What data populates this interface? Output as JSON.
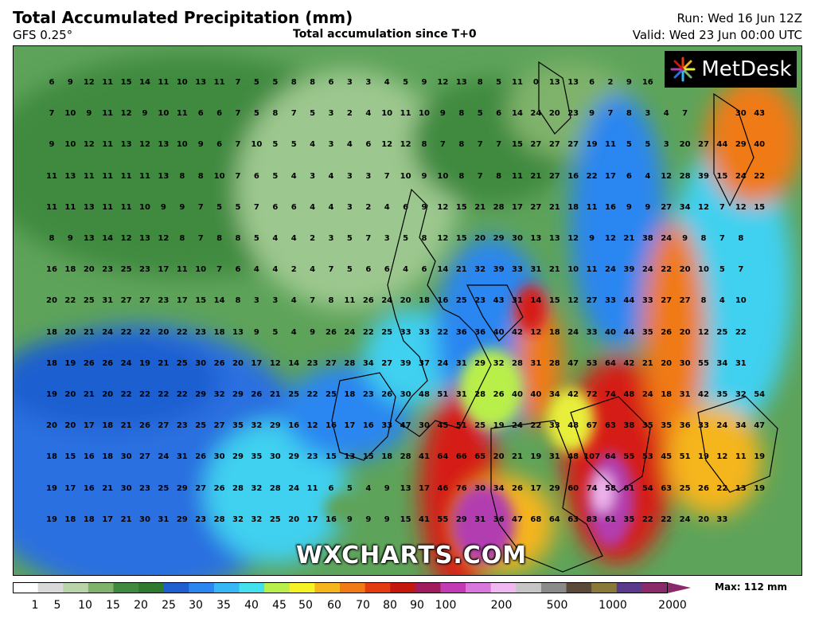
{
  "header": {
    "title": "Total Accumulated Precipitation (mm)",
    "model": "GFS 0.25°",
    "subtitle": "Total accumulation since T+0",
    "run": "Run: Wed 16 Jun 12Z",
    "valid": "Valid: Wed 23 Jun 00:00 UTC"
  },
  "logo": {
    "text": "MetDesk",
    "icon": "metdesk-burst-icon"
  },
  "watermark": "WXCHARTS.COM",
  "legend": {
    "labels": [
      "1",
      "5",
      "10",
      "15",
      "20",
      "25",
      "30",
      "35",
      "40",
      "45",
      "50",
      "60",
      "70",
      "80",
      "90",
      "100",
      "200",
      "500",
      "1000",
      "2000"
    ],
    "max_label": "Max: 112 mm",
    "colors": [
      "#ffffff",
      "#d9d9d9",
      "#b8d4a8",
      "#7fb26a",
      "#3f8a3f",
      "#2f7a2f",
      "#1f5fd0",
      "#2b86f0",
      "#38b7f5",
      "#43e0ee",
      "#b9ef4a",
      "#f5f226",
      "#f5b51d",
      "#f07a16",
      "#e53b12",
      "#c6170f",
      "#a01c5c",
      "#c23bb4",
      "#d878dc",
      "#f0b8f0",
      "#c6c6c6",
      "#8a8a8a",
      "#5a4a3a",
      "#8a7a3a",
      "#5a3a8a",
      "#8a2a6a"
    ]
  },
  "map": {
    "colors": {
      "dark_green": "#3f8a3f",
      "green": "#5ea35a",
      "light_green": "#9cc78e",
      "blue": "#2b6fe0",
      "cyan": "#3fd0f0",
      "yellow": "#e8ef3a",
      "orange": "#f07a16",
      "red": "#d61e12",
      "magenta": "#b23cb0"
    },
    "grid_values": [
      [
        "6",
        "9",
        "12",
        "11",
        "15",
        "14",
        "11",
        "10",
        "13",
        "11",
        "7",
        "5",
        "5",
        "8",
        "8",
        "6",
        "3",
        "3",
        "4",
        "5",
        "9",
        "12",
        "13",
        "8",
        "5",
        "11",
        "0",
        "13",
        "13",
        "6",
        "2",
        "9",
        "16"
      ],
      [
        "7",
        "10",
        "9",
        "11",
        "12",
        "9",
        "10",
        "11",
        "6",
        "6",
        "7",
        "5",
        "8",
        "7",
        "5",
        "3",
        "2",
        "4",
        "10",
        "11",
        "10",
        "9",
        "8",
        "5",
        "6",
        "14",
        "24",
        "20",
        "23",
        "9",
        "7",
        "8",
        "3",
        "4",
        "7",
        "",
        "",
        "30",
        "43"
      ],
      [
        "9",
        "10",
        "12",
        "11",
        "13",
        "12",
        "13",
        "10",
        "9",
        "6",
        "7",
        "10",
        "5",
        "5",
        "4",
        "3",
        "4",
        "6",
        "12",
        "12",
        "8",
        "7",
        "8",
        "7",
        "7",
        "15",
        "27",
        "27",
        "27",
        "19",
        "11",
        "5",
        "5",
        "3",
        "20",
        "27",
        "44",
        "29",
        "40"
      ],
      [
        "11",
        "13",
        "11",
        "11",
        "11",
        "11",
        "13",
        "8",
        "8",
        "10",
        "7",
        "6",
        "5",
        "4",
        "3",
        "4",
        "3",
        "3",
        "7",
        "10",
        "9",
        "10",
        "8",
        "7",
        "8",
        "11",
        "21",
        "27",
        "16",
        "22",
        "17",
        "6",
        "4",
        "12",
        "28",
        "39",
        "15",
        "24",
        "22"
      ],
      [
        "11",
        "11",
        "13",
        "11",
        "11",
        "10",
        "9",
        "9",
        "7",
        "5",
        "5",
        "7",
        "6",
        "6",
        "4",
        "4",
        "3",
        "2",
        "4",
        "6",
        "9",
        "12",
        "15",
        "21",
        "28",
        "17",
        "27",
        "21",
        "18",
        "11",
        "16",
        "9",
        "9",
        "27",
        "34",
        "12",
        "7",
        "12",
        "15"
      ],
      [
        "8",
        "9",
        "13",
        "14",
        "12",
        "13",
        "12",
        "8",
        "7",
        "8",
        "8",
        "5",
        "4",
        "4",
        "2",
        "3",
        "5",
        "7",
        "3",
        "5",
        "8",
        "12",
        "15",
        "20",
        "29",
        "30",
        "13",
        "13",
        "12",
        "9",
        "12",
        "21",
        "38",
        "24",
        "9",
        "8",
        "7",
        "8"
      ],
      [
        "16",
        "18",
        "20",
        "23",
        "25",
        "23",
        "17",
        "11",
        "10",
        "7",
        "6",
        "4",
        "4",
        "2",
        "4",
        "7",
        "5",
        "6",
        "6",
        "4",
        "6",
        "14",
        "21",
        "32",
        "39",
        "33",
        "31",
        "21",
        "10",
        "11",
        "24",
        "39",
        "24",
        "22",
        "20",
        "10",
        "5",
        "7"
      ],
      [
        "20",
        "22",
        "25",
        "31",
        "27",
        "27",
        "23",
        "17",
        "15",
        "14",
        "8",
        "3",
        "3",
        "4",
        "7",
        "8",
        "11",
        "26",
        "24",
        "20",
        "18",
        "16",
        "25",
        "23",
        "43",
        "31",
        "14",
        "15",
        "12",
        "27",
        "33",
        "44",
        "33",
        "27",
        "27",
        "8",
        "4",
        "10"
      ],
      [
        "18",
        "20",
        "21",
        "24",
        "22",
        "22",
        "20",
        "22",
        "23",
        "18",
        "13",
        "9",
        "5",
        "4",
        "9",
        "26",
        "24",
        "22",
        "25",
        "33",
        "33",
        "22",
        "36",
        "36",
        "40",
        "42",
        "12",
        "18",
        "24",
        "33",
        "40",
        "44",
        "35",
        "26",
        "20",
        "12",
        "25",
        "22"
      ],
      [
        "18",
        "19",
        "26",
        "26",
        "24",
        "19",
        "21",
        "25",
        "30",
        "26",
        "20",
        "17",
        "12",
        "14",
        "23",
        "27",
        "28",
        "34",
        "27",
        "39",
        "37",
        "24",
        "31",
        "29",
        "32",
        "28",
        "31",
        "28",
        "47",
        "53",
        "64",
        "42",
        "21",
        "20",
        "30",
        "55",
        "34",
        "31"
      ],
      [
        "19",
        "20",
        "21",
        "20",
        "22",
        "22",
        "22",
        "22",
        "29",
        "32",
        "29",
        "26",
        "21",
        "25",
        "22",
        "25",
        "18",
        "23",
        "26",
        "30",
        "48",
        "51",
        "31",
        "28",
        "26",
        "40",
        "40",
        "34",
        "42",
        "72",
        "74",
        "48",
        "24",
        "18",
        "31",
        "42",
        "35",
        "32",
        "54"
      ],
      [
        "20",
        "20",
        "17",
        "18",
        "21",
        "26",
        "27",
        "23",
        "25",
        "27",
        "35",
        "32",
        "29",
        "16",
        "12",
        "16",
        "17",
        "16",
        "33",
        "47",
        "30",
        "45",
        "51",
        "25",
        "19",
        "24",
        "22",
        "33",
        "48",
        "67",
        "63",
        "38",
        "35",
        "35",
        "36",
        "33",
        "24",
        "34",
        "47"
      ],
      [
        "18",
        "15",
        "16",
        "18",
        "30",
        "27",
        "24",
        "31",
        "26",
        "30",
        "29",
        "35",
        "30",
        "29",
        "23",
        "15",
        "13",
        "15",
        "18",
        "28",
        "41",
        "64",
        "66",
        "65",
        "20",
        "21",
        "19",
        "31",
        "48",
        "107",
        "64",
        "55",
        "53",
        "45",
        "51",
        "19",
        "12",
        "11",
        "19"
      ],
      [
        "19",
        "17",
        "16",
        "21",
        "30",
        "23",
        "25",
        "29",
        "27",
        "26",
        "28",
        "32",
        "28",
        "24",
        "11",
        "6",
        "5",
        "4",
        "9",
        "13",
        "17",
        "46",
        "76",
        "30",
        "34",
        "26",
        "17",
        "29",
        "60",
        "74",
        "58",
        "61",
        "54",
        "63",
        "25",
        "26",
        "22",
        "13",
        "19"
      ],
      [
        "19",
        "18",
        "18",
        "17",
        "21",
        "30",
        "31",
        "29",
        "23",
        "28",
        "32",
        "32",
        "25",
        "20",
        "17",
        "16",
        "9",
        "9",
        "9",
        "15",
        "41",
        "55",
        "29",
        "31",
        "36",
        "47",
        "68",
        "64",
        "63",
        "83",
        "61",
        "35",
        "22",
        "22",
        "24",
        "20",
        "33"
      ]
    ]
  }
}
